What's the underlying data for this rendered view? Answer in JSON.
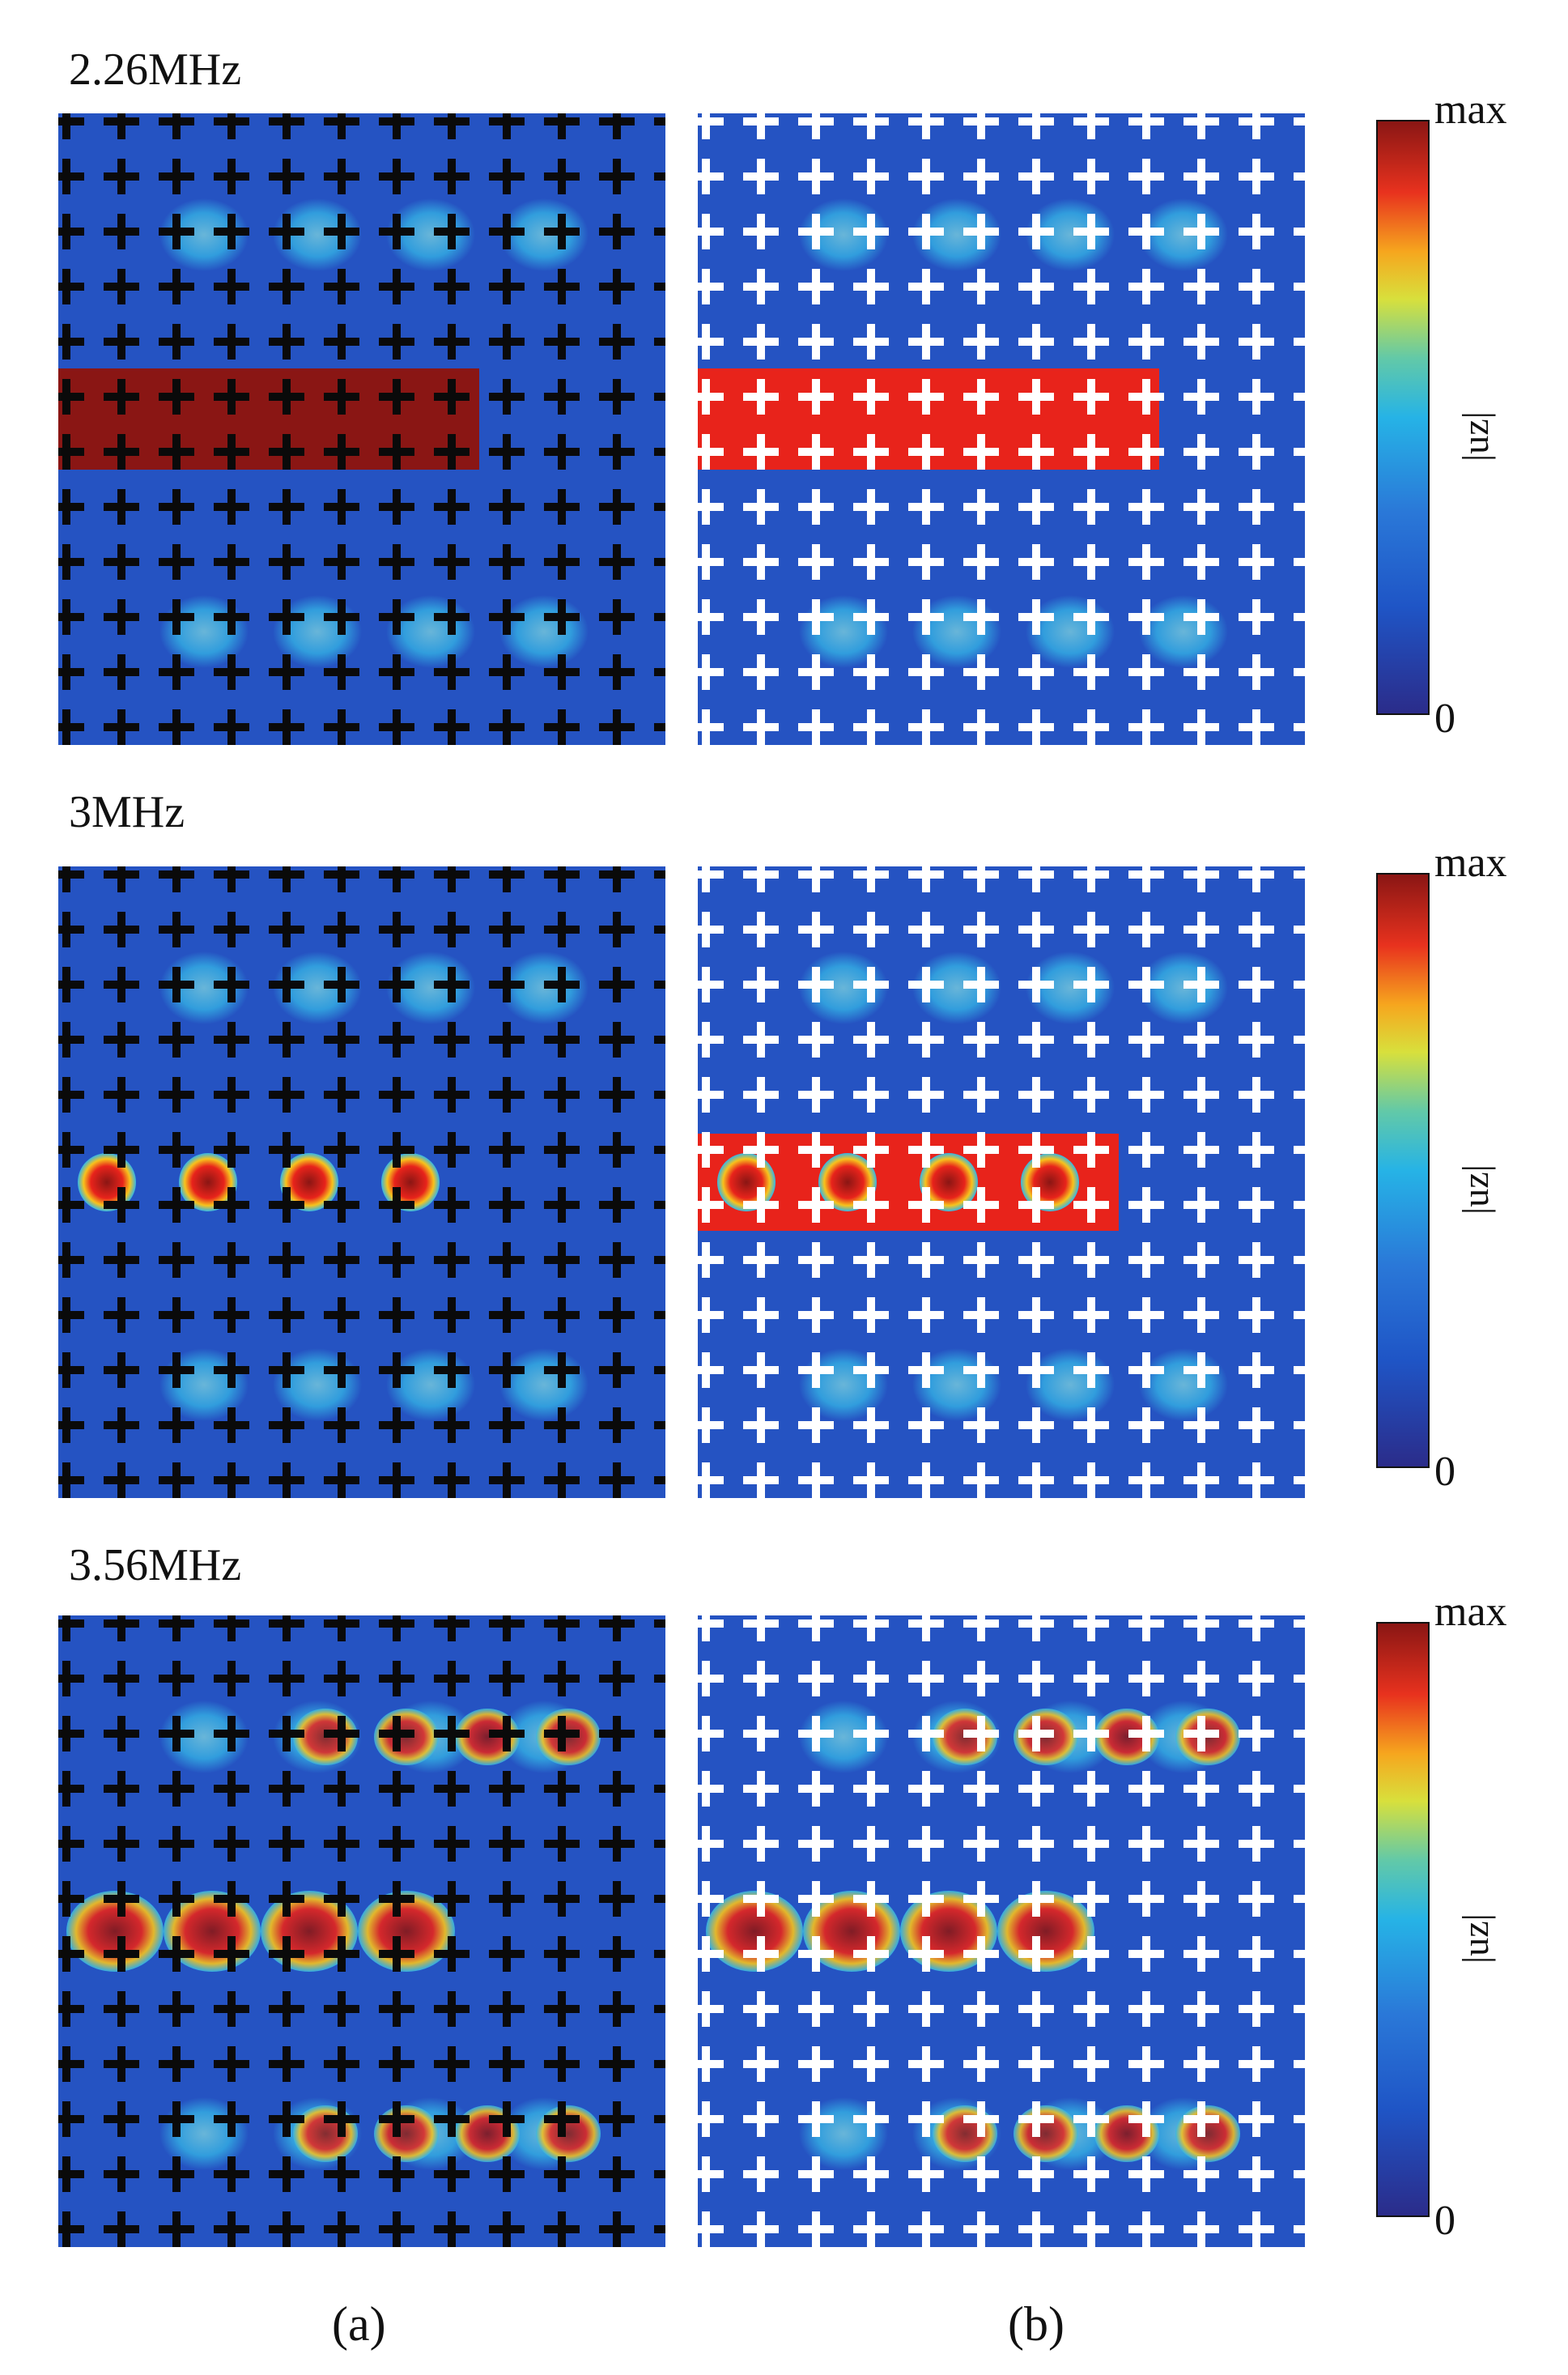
{
  "figure": {
    "rows": [
      {
        "frequency": "2.26MHz",
        "colorbar_max": "max",
        "colorbar_min": "0",
        "colorbar_label": "|uz|"
      },
      {
        "frequency": "3MHz",
        "colorbar_max": "max",
        "colorbar_min": "0",
        "colorbar_label": "|uz|"
      },
      {
        "frequency": "3.56MHz",
        "colorbar_max": "max",
        "colorbar_min": "0",
        "colorbar_label": "|uz|"
      }
    ],
    "subfigure_labels": [
      "(a)",
      "(b)"
    ]
  },
  "colors": {
    "bg_blue": "#2553c2",
    "hot_red": "#e8231b",
    "dark_red": "#8a1614",
    "cyan": "#35b6e6",
    "grid_black": "#0a0a0a",
    "grid_white": "#ffffff"
  }
}
